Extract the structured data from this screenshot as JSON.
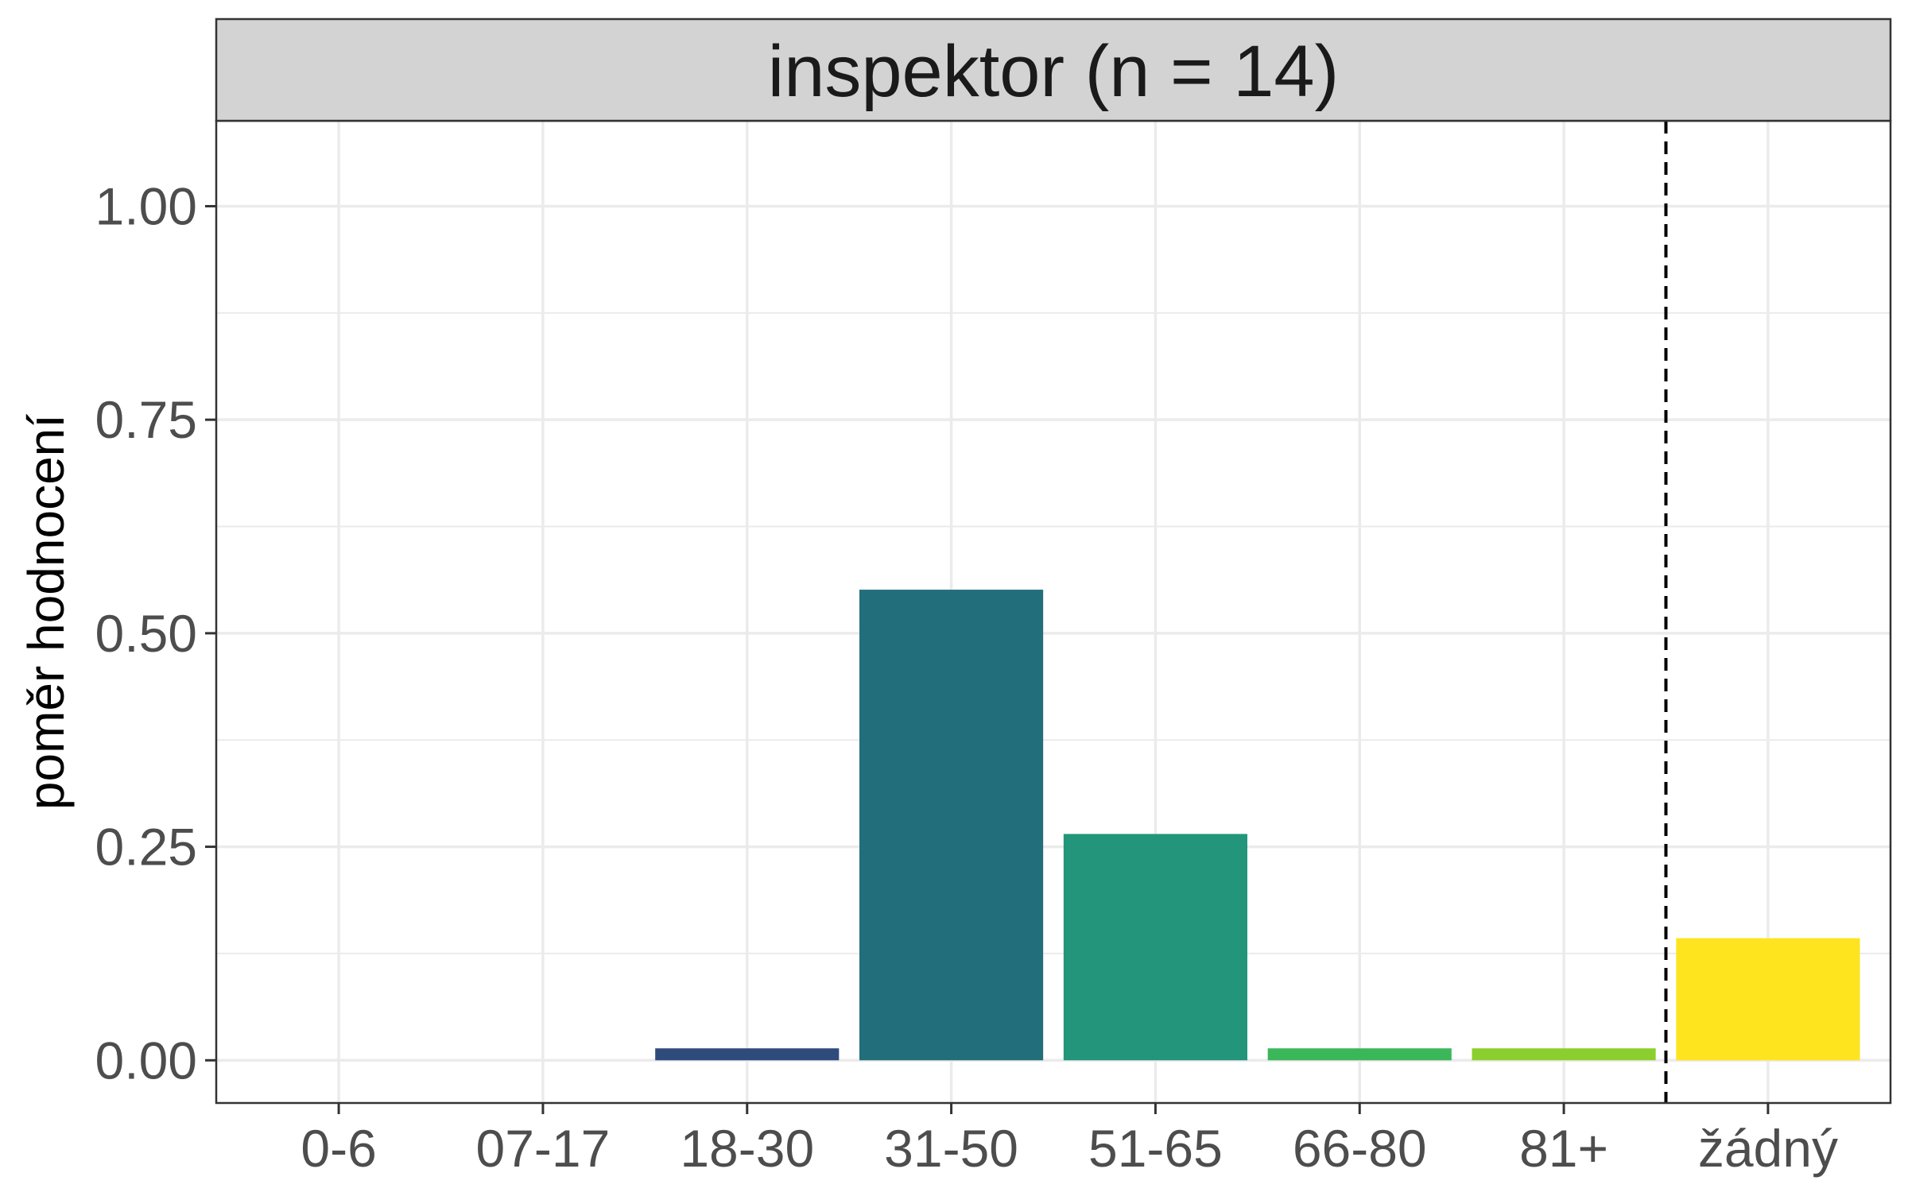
{
  "chart_data": {
    "type": "bar",
    "facet_title": "inspektor (n = 14)",
    "ylabel": "poměr hodnocení",
    "xlabel": "",
    "categories": [
      "0-6",
      "07-17",
      "18-30",
      "31-50",
      "51-65",
      "66-80",
      "81+",
      "žádný"
    ],
    "values": [
      0.0,
      0.0,
      0.014,
      0.551,
      0.265,
      0.014,
      0.014,
      0.143
    ],
    "colors": [
      "#440154",
      "#46337E",
      "#2F4B7C",
      "#226F7B",
      "#22957A",
      "#3BB75A",
      "#8BCF2F",
      "#FDE41F"
    ],
    "ylim": [
      -0.05,
      1.1
    ],
    "yticks": [
      0.0,
      0.25,
      0.5,
      0.75,
      1.0
    ],
    "ytick_labels": [
      "0.00",
      "0.25",
      "0.50",
      "0.75",
      "1.00"
    ],
    "grid": true,
    "vline_between": [
      "81+",
      "žádný"
    ],
    "vline_style": "dashed"
  }
}
